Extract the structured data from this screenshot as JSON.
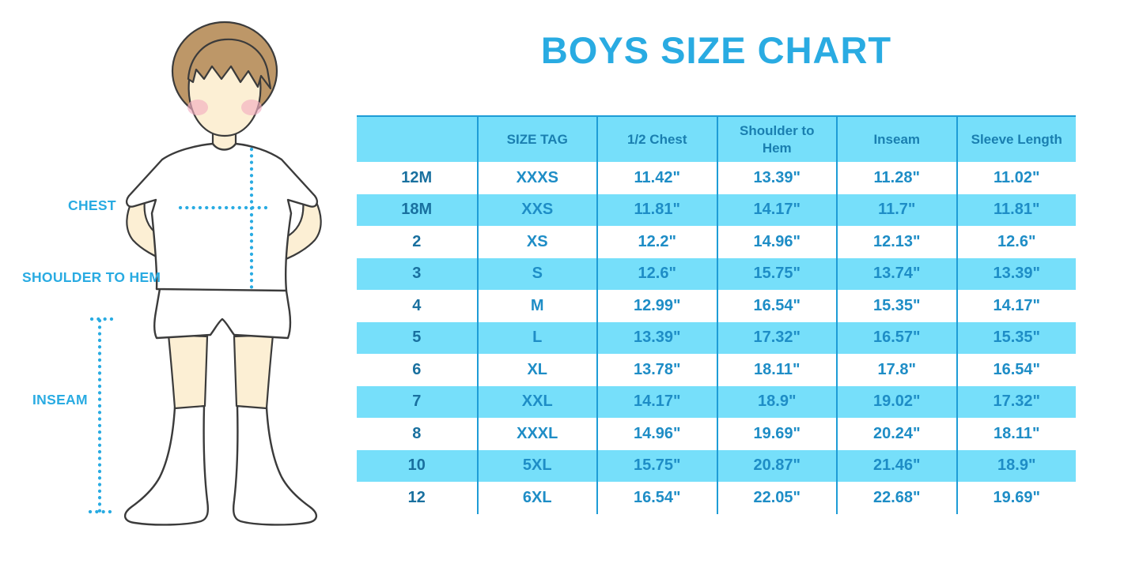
{
  "title": "BOYS SIZE CHART",
  "figure_labels": {
    "chest": "CHEST",
    "shoulder_to_hem": "SHOULDER TO HEM",
    "inseam": "INSEAM"
  },
  "colors": {
    "accent": "#29ABE2",
    "stripe": "#76DFFA",
    "line": "#1E9CD6",
    "head-text": "#1A7FB0",
    "cell-text": "#1E8DC6",
    "col1-text": "#19709F",
    "hair": "#BD9768",
    "skin": "#FCEFD4",
    "cheek": "#F3AEC0",
    "outline": "#3B3B3B",
    "garment": "#FFFFFF"
  },
  "chart_data": {
    "type": "table",
    "title": "BOYS SIZE CHART",
    "columns": [
      "",
      "SIZE TAG",
      "1/2 Chest",
      "Shoulder to Hem",
      "Inseam",
      "Sleeve Length"
    ],
    "rows": [
      [
        "12M",
        "XXXS",
        "11.42\"",
        "13.39\"",
        "11.28\"",
        "11.02\""
      ],
      [
        "18M",
        "XXS",
        "11.81\"",
        "14.17\"",
        "11.7\"",
        "11.81\""
      ],
      [
        "2",
        "XS",
        "12.2\"",
        "14.96\"",
        "12.13\"",
        "12.6\""
      ],
      [
        "3",
        "S",
        "12.6\"",
        "15.75\"",
        "13.74\"",
        "13.39\""
      ],
      [
        "4",
        "M",
        "12.99\"",
        "16.54\"",
        "15.35\"",
        "14.17\""
      ],
      [
        "5",
        "L",
        "13.39\"",
        "17.32\"",
        "16.57\"",
        "15.35\""
      ],
      [
        "6",
        "XL",
        "13.78\"",
        "18.11\"",
        "17.8\"",
        "16.54\""
      ],
      [
        "7",
        "XXL",
        "14.17\"",
        "18.9\"",
        "19.02\"",
        "17.32\""
      ],
      [
        "8",
        "XXXL",
        "14.96\"",
        "19.69\"",
        "20.24\"",
        "18.11\""
      ],
      [
        "10",
        "5XL",
        "15.75\"",
        "20.87\"",
        "21.46\"",
        "18.9\""
      ],
      [
        "12",
        "6XL",
        "16.54\"",
        "22.05\"",
        "22.68\"",
        "19.69\""
      ]
    ],
    "layout": {
      "striped": true,
      "stripe_rows": "header and alternating data rows",
      "grid": "vertical column lines + top border only"
    }
  }
}
